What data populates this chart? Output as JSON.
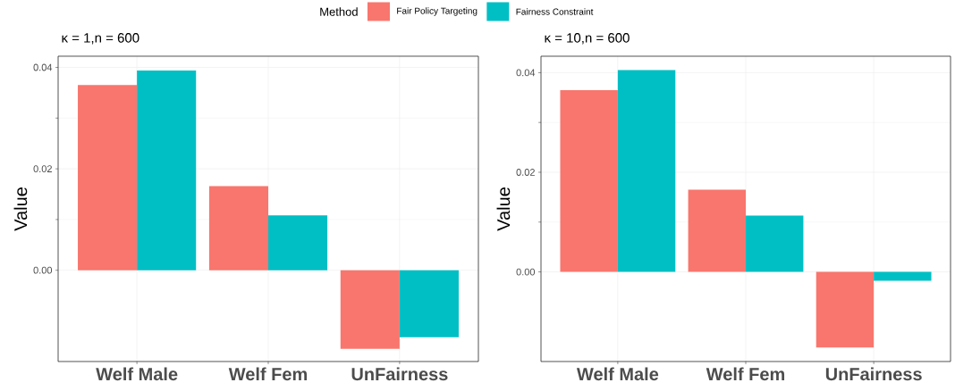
{
  "chart_data": [
    {
      "type": "bar",
      "title": "κ = 1,n = 600",
      "ylabel": "Value",
      "legend_title": "Method",
      "legend": "top",
      "grid": true,
      "categories": [
        "Welf Male",
        "Welf Fem",
        "UnFairness"
      ],
      "series": [
        {
          "name": "Fair Policy Targeting",
          "color": "#f8766d",
          "values": [
            0.0365,
            0.0166,
            -0.0155
          ]
        },
        {
          "name": "Fairness Constraint",
          "color": "#00bfc4",
          "values": [
            0.0394,
            0.0108,
            -0.0132
          ]
        }
      ],
      "ylim": [
        -0.018,
        0.0422
      ],
      "yticks": [
        {
          "value": 0,
          "label": "0.00"
        },
        {
          "value": 0.02,
          "label": "0.02"
        },
        {
          "value": 0.04,
          "label": "0.04"
        }
      ]
    },
    {
      "type": "bar",
      "title": "κ = 10,n = 600",
      "ylabel": "Value",
      "grid": true,
      "categories": [
        "Welf Male",
        "Welf Fem",
        "UnFairness"
      ],
      "series": [
        {
          "color": "#f8766d",
          "values": [
            0.0365,
            0.0165,
            -0.0152
          ]
        },
        {
          "color": "#00bfc4",
          "values": [
            0.0405,
            0.0113,
            -0.0018
          ]
        }
      ],
      "ylim": [
        -0.018,
        0.0433
      ],
      "yticks": [
        {
          "value": 0,
          "label": "0.00"
        },
        {
          "value": 0.02,
          "label": "0.02"
        },
        {
          "value": 0.04,
          "label": "0.04"
        }
      ]
    }
  ]
}
